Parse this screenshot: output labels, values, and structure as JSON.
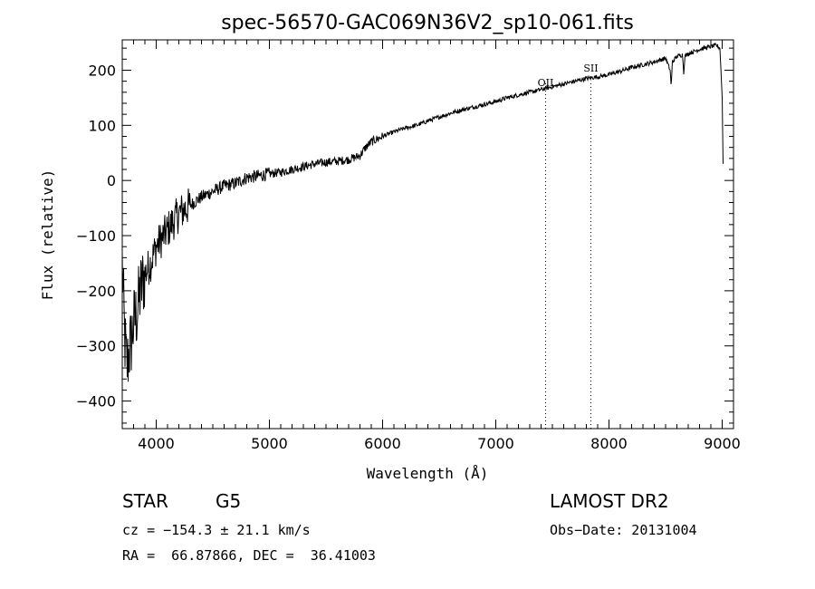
{
  "chart_data": {
    "type": "line",
    "title": "spec-56570-GAC069N36V2_sp10-061.fits",
    "xlabel": "Wavelength (Å)",
    "ylabel": "Flux (relative)",
    "xlim": [
      3700,
      9100
    ],
    "ylim": [
      -450,
      255
    ],
    "xticks": [
      4000,
      5000,
      6000,
      7000,
      8000,
      9000
    ],
    "yticks": [
      -400,
      -300,
      -200,
      -100,
      0,
      100,
      200
    ],
    "grid": false,
    "series": [
      {
        "x": [
          3700,
          3720,
          3740,
          3760,
          3780,
          3800,
          3830,
          3860,
          3900,
          3950,
          4000,
          4100,
          4200,
          4300,
          4400,
          4500,
          4600,
          4700,
          4800,
          4900,
          5000,
          5100,
          5200,
          5300,
          5400,
          5500,
          5600,
          5700,
          5800,
          5850,
          5900,
          6000,
          6100,
          6200,
          6300,
          6400,
          6500,
          6600,
          6700,
          6800,
          6900,
          7000,
          7100,
          7200,
          7300,
          7400,
          7500,
          7600,
          7700,
          7800,
          7900,
          8000,
          8100,
          8200,
          8300,
          8400,
          8500,
          8540,
          8550,
          8560,
          8600,
          8650,
          8660,
          8670,
          8700,
          8800,
          8900,
          8950,
          8980,
          9000,
          9010
        ],
        "y": [
          -150,
          -280,
          -340,
          -310,
          -290,
          -260,
          -240,
          -200,
          -170,
          -150,
          -120,
          -90,
          -60,
          -45,
          -30,
          -20,
          -10,
          -5,
          5,
          8,
          12,
          15,
          20,
          25,
          30,
          33,
          35,
          38,
          45,
          60,
          70,
          80,
          88,
          95,
          100,
          108,
          115,
          122,
          128,
          133,
          138,
          143,
          150,
          155,
          160,
          165,
          170,
          175,
          180,
          185,
          188,
          192,
          198,
          205,
          210,
          215,
          222,
          200,
          170,
          215,
          225,
          228,
          195,
          225,
          230,
          238,
          243,
          245,
          240,
          150,
          0
        ]
      }
    ],
    "annotations": [
      {
        "label": "OII",
        "x": 7440
      },
      {
        "label": "SII",
        "x": 7840
      }
    ]
  },
  "info": {
    "object_class": "STAR",
    "subclass": "G5",
    "survey": "LAMOST DR2",
    "cz": "cz = −154.3 ± 21.1 km/s",
    "obs_date": "Obs−Date: 20131004",
    "coords": "RA =  66.87866, DEC =  36.41003"
  }
}
